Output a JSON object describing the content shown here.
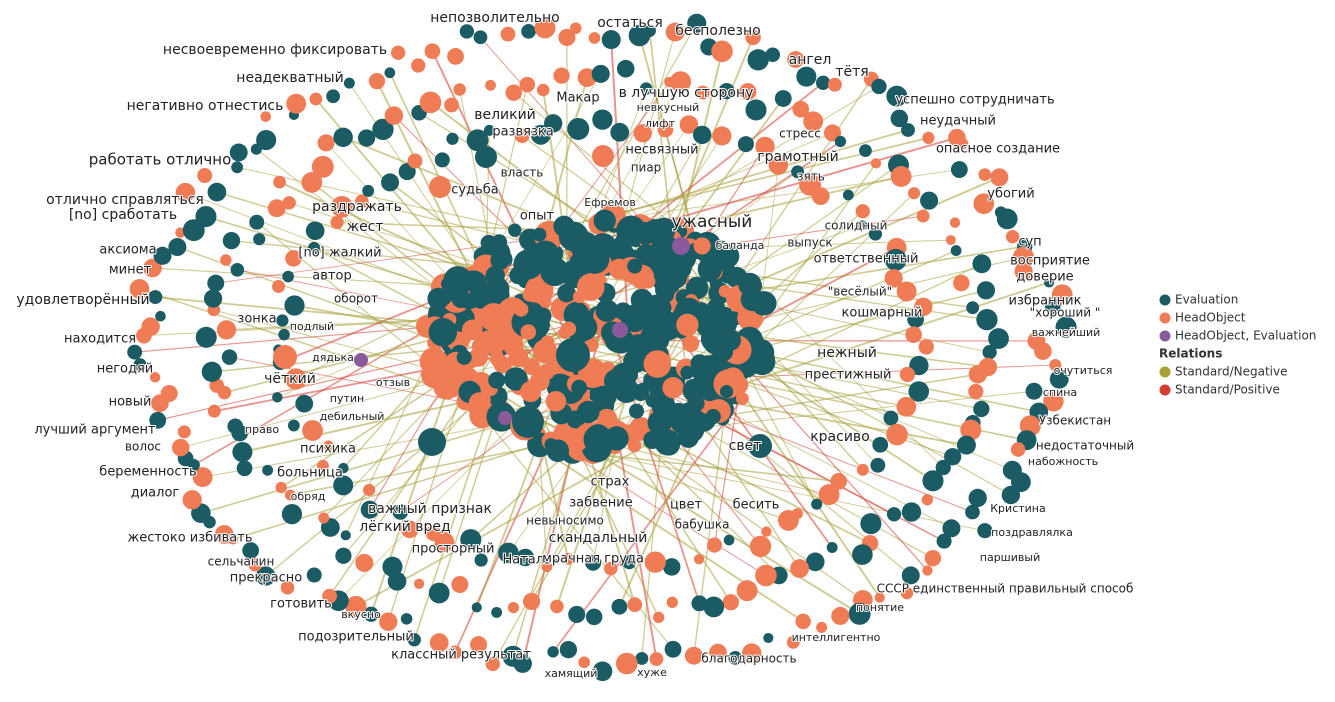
{
  "legend": {
    "node_types": [
      {
        "label": "Evaluation",
        "color": "#1b5b63"
      },
      {
        "label": "HeadObject",
        "color": "#f07c55"
      },
      {
        "label": "HeadObject, Evaluation",
        "color": "#8b5a9c"
      }
    ],
    "relations_title": "Relations",
    "relations": [
      {
        "label": "Standard/Negative",
        "color": "#a8a13a"
      },
      {
        "label": "Standard/Positive",
        "color": "#d63a30"
      }
    ]
  },
  "labels": [
    "непозволительно",
    "остаться",
    "бесполезно",
    "несвоевременно фиксировать",
    "ангел",
    "тётя",
    "неадекватный",
    "в лучшую сторону",
    "Макар",
    "успешно сотрудничать",
    "невкусный",
    "негативно отнестись",
    "великий",
    "развязка",
    "лифт",
    "неудачный",
    "стресс",
    "несвязный",
    "опасное создание",
    "грамотный",
    "работать отлично",
    "пиар",
    "власть",
    "зять",
    "судьба",
    "отлично справляться",
    "убогий",
    "раздражать",
    "опыт",
    "Ефремов",
    "[no] сработать",
    "ужасный",
    "жест",
    "солидный",
    "аксиома",
    "[no] жалкий",
    "баланда",
    "выпуск",
    "суп",
    "ответственный",
    "восприятие",
    "минет",
    "автор",
    "доверие",
    "\"весёлый\"",
    "удовлетворённый",
    "оборот",
    "избранник",
    "\"хороший \"",
    "кошмарный",
    "зонка",
    "подлый",
    "важнейший",
    "находится",
    "дядька",
    "нежный",
    "негодяй",
    "отзыв",
    "престижный",
    "очутиться",
    "чёткий",
    "путин",
    "новый",
    "спина",
    "дебильный",
    "Узбекистан",
    "лучший аргумент",
    "право",
    "красиво",
    "волос",
    "психика",
    "недостаточный",
    "свет",
    "набожность",
    "беременность",
    "больница",
    "страх",
    "диалог",
    "обряд",
    "забвение",
    "цвет",
    "бесить",
    "важный признак",
    "Кристина",
    "лёгкий вред",
    "невыносимо",
    "бабушка",
    "жестоко избивать",
    "скандальный",
    "поздравлялка",
    "просторный",
    "сельчанин",
    "Наталья",
    "мрачная груда",
    "паршивый",
    "прекрасно",
    "СССР единственный правильный способ",
    "готовить",
    "вкусно",
    "понятие",
    "подозрительный",
    "интеллигентно",
    "классный результат",
    "благодарность",
    "хамящий",
    "хуже"
  ]
}
